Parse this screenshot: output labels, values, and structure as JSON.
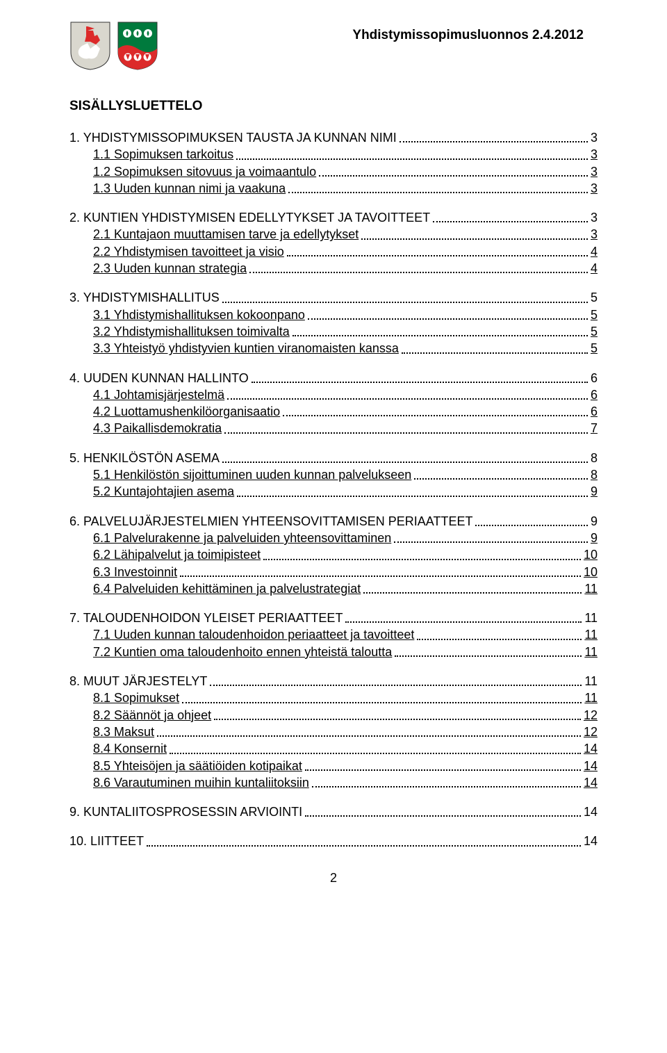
{
  "header": {
    "doc_title": "Yhdistymissopimusluonnos 2.4.2012"
  },
  "toc_title": "SISÄLLYSLUETTELO",
  "page_number": "2",
  "sections": [
    {
      "h": {
        "label": "1. YHDISTYMISSOPIMUKSEN TAUSTA JA KUNNAN NIMI",
        "page": "3"
      },
      "items": [
        {
          "label": "1.1   Sopimuksen tarkoitus",
          "page": "3"
        },
        {
          "label": "1.2   Sopimuksen sitovuus ja voimaantulo",
          "page": "3"
        },
        {
          "label": "1.3   Uuden kunnan nimi ja vaakuna",
          "page": "3"
        }
      ]
    },
    {
      "h": {
        "label": "2. KUNTIEN YHDISTYMISEN EDELLYTYKSET JA TAVOITTEET",
        "page": "3"
      },
      "items": [
        {
          "label": "2.1   Kuntajaon muuttamisen tarve ja edellytykset",
          "page": "3"
        },
        {
          "label": "2.2   Yhdistymisen tavoitteet ja visio",
          "page": "4"
        },
        {
          "label": "2.3   Uuden kunnan strategia",
          "page": "4"
        }
      ]
    },
    {
      "h": {
        "label": "3. YHDISTYMISHALLITUS",
        "page": "5"
      },
      "items": [
        {
          "label": "3.1   Yhdistymishallituksen kokoonpano",
          "page": "5"
        },
        {
          "label": "3.2   Yhdistymishallituksen toimivalta",
          "page": "5"
        },
        {
          "label": "3.3   Yhteistyö yhdistyvien kuntien viranomaisten kanssa",
          "page": "5"
        }
      ]
    },
    {
      "h": {
        "label": "4. UUDEN KUNNAN HALLINTO",
        "page": "6"
      },
      "items": [
        {
          "label": "4.1   Johtamisjärjestelmä",
          "page": "6"
        },
        {
          "label": "4.2   Luottamushenkilöorganisaatio",
          "page": "6"
        },
        {
          "label": "4.3   Paikallisdemokratia",
          "page": "7"
        }
      ]
    },
    {
      "h": {
        "label": "5. HENKILÖSTÖN ASEMA",
        "page": "8"
      },
      "items": [
        {
          "label": "5.1   Henkilöstön sijoittuminen uuden kunnan palvelukseen",
          "page": "8"
        },
        {
          "label": "5.2   Kuntajohtajien asema",
          "page": "9"
        }
      ]
    },
    {
      "h": {
        "label": "6. PALVELUJÄRJESTELMIEN YHTEENSOVITTAMISEN PERIAATTEET",
        "page": "9"
      },
      "items": [
        {
          "label": "6.1   Palvelurakenne ja palveluiden yhteensovittaminen",
          "page": "9"
        },
        {
          "label": "6.2   Lähipalvelut ja toimipisteet",
          "page": "10"
        },
        {
          "label": "6.3   Investoinnit",
          "page": "10"
        },
        {
          "label": "6.4   Palveluiden kehittäminen ja palvelustrategiat",
          "page": "11"
        }
      ]
    },
    {
      "h": {
        "label": "7. TALOUDENHOIDON YLEISET PERIAATTEET",
        "page": "11"
      },
      "items": [
        {
          "label": "7.1   Uuden kunnan taloudenhoidon periaatteet ja tavoitteet",
          "page": "11"
        },
        {
          "label": "7.2   Kuntien oma taloudenhoito ennen yhteistä taloutta",
          "page": "11"
        }
      ]
    },
    {
      "h": {
        "label": "8. MUUT JÄRJESTELYT",
        "page": "11"
      },
      "items": [
        {
          "label": "8.1   Sopimukset",
          "page": "11"
        },
        {
          "label": "8.2   Säännöt ja ohjeet",
          "page": "12"
        },
        {
          "label": "8.3   Maksut",
          "page": "12"
        },
        {
          "label": "8.4   Konsernit",
          "page": "14"
        },
        {
          "label": "8.5   Yhteisöjen ja säätiöiden kotipaikat",
          "page": "14"
        },
        {
          "label": "8.6   Varautuminen muihin kuntaliitoksiin",
          "page": "14"
        }
      ]
    },
    {
      "h": {
        "label": "9. KUNTALIITOSPROSESSIN ARVIOINTI",
        "page": "14"
      },
      "items": []
    },
    {
      "h": {
        "label": "10. LIITTEET",
        "page": "14"
      },
      "items": []
    }
  ],
  "crests": {
    "left": {
      "shield_fill": "#d9d7ce",
      "knight_fill": "#dc2a2a",
      "horse_fill": "#ffffff"
    },
    "right": {
      "top_fill": "#007a3d",
      "bottom_fill": "#dc2a2a",
      "suit_fill": "#ffffff"
    }
  }
}
